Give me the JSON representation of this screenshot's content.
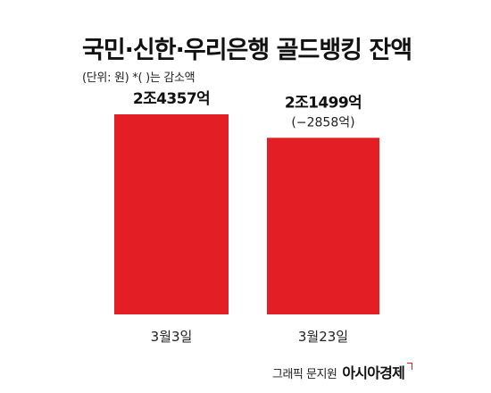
{
  "header": {
    "title": "국민·신한·우리은행 골드뱅킹 잔액",
    "subtitle": "(단위: 원)  *( )는 감소액"
  },
  "chart_data": {
    "type": "bar",
    "title": "국민·신한·우리은행 골드뱅킹 잔액",
    "subtitle": "(단위: 원)  *( )는 감소액",
    "categories": [
      "3월3일",
      "3월23일"
    ],
    "values": [
      2435700000000,
      2149900000000
    ],
    "value_labels": [
      "2조4357억",
      "2조1499억"
    ],
    "change_labels": [
      "",
      "(−2858억)"
    ],
    "ylim": [
      0,
      2435700000000
    ],
    "grid": false,
    "legend": "none",
    "bar_color": "#e31e25"
  },
  "credit": {
    "text": "그래픽 문지원",
    "brand": "아시아경제"
  },
  "colors": {
    "bar": "#e31e25",
    "brand_mark": "#e31e25"
  }
}
